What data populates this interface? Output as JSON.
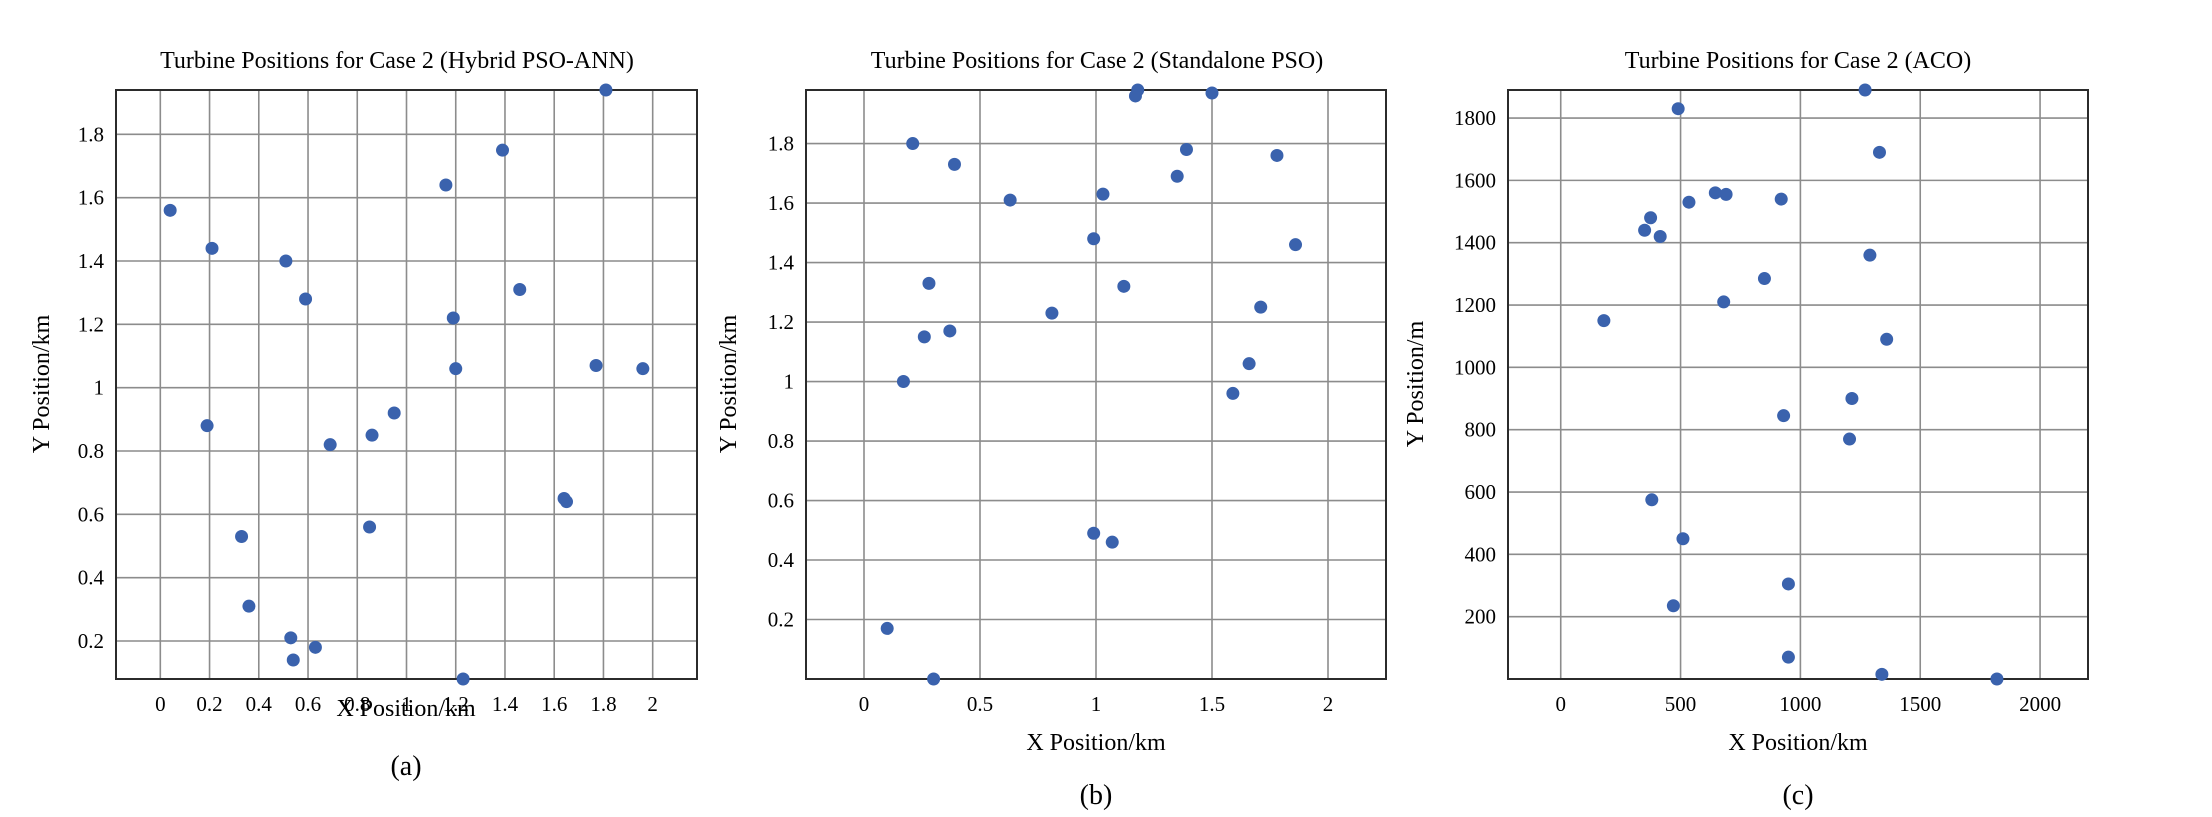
{
  "colors": {
    "marker": "#3a62ad",
    "grid": "#8c8c8c",
    "frame": "#2b2b2b"
  },
  "chart_data": [
    {
      "type": "scatter",
      "title": "Turbine Positions for Case 2 (Hybrid PSO-ANN)",
      "xlabel": "X Position/km",
      "ylabel": "Y Position/km",
      "caption": "(a)",
      "xlim": [
        -0.18,
        2.18
      ],
      "ylim": [
        0.08,
        1.94
      ],
      "xticks": [
        0,
        0.2,
        0.4,
        0.6,
        0.8,
        1,
        1.2,
        1.4,
        1.6,
        1.8,
        2
      ],
      "xtick_labels": [
        "0",
        "0.2",
        "0.4",
        "0.6",
        "0.8",
        "1",
        "1.2",
        "1.4",
        "1.6",
        "1.8",
        "2"
      ],
      "yticks": [
        0.2,
        0.4,
        0.6,
        0.8,
        1,
        1.2,
        1.4,
        1.6,
        1.8
      ],
      "ytick_labels": [
        "0.2",
        "0.4",
        "0.6",
        "0.8",
        "1",
        "1.2",
        "1.4",
        "1.6",
        "1.8"
      ],
      "grid": true,
      "x": [
        0.04,
        0.21,
        0.19,
        0.33,
        0.36,
        0.51,
        0.53,
        0.54,
        0.59,
        0.63,
        0.69,
        0.85,
        0.86,
        0.95,
        1.16,
        1.19,
        1.2,
        1.23,
        1.39,
        1.46,
        1.64,
        1.65,
        1.77,
        1.81,
        1.96
      ],
      "y": [
        1.56,
        1.44,
        0.88,
        0.53,
        0.31,
        1.4,
        0.21,
        0.14,
        1.28,
        0.18,
        0.82,
        0.56,
        0.85,
        0.92,
        1.64,
        1.22,
        1.06,
        0.08,
        1.75,
        1.31,
        0.65,
        0.64,
        1.07,
        1.94,
        1.06
      ]
    },
    {
      "type": "scatter",
      "title": "Turbine Positions for Case 2 (Standalone PSO)",
      "xlabel": "X Position/km",
      "ylabel": "Y Position/km",
      "caption": "(b)",
      "xlim": [
        -0.25,
        2.25
      ],
      "ylim": [
        0.0,
        1.98
      ],
      "xticks": [
        0,
        0.5,
        1,
        1.5,
        2
      ],
      "xtick_labels": [
        "0",
        "0.5",
        "1",
        "1.5",
        "2"
      ],
      "yticks": [
        0.2,
        0.4,
        0.6,
        0.8,
        1,
        1.2,
        1.4,
        1.6,
        1.8
      ],
      "ytick_labels": [
        "0.2",
        "0.4",
        "0.6",
        "0.8",
        "1",
        "1.2",
        "1.4",
        "1.6",
        "1.8"
      ],
      "grid": true,
      "x": [
        0.1,
        0.17,
        0.21,
        0.26,
        0.28,
        0.3,
        0.37,
        0.39,
        0.63,
        0.81,
        0.99,
        0.99,
        1.03,
        1.07,
        1.12,
        1.17,
        1.18,
        1.35,
        1.39,
        1.5,
        1.59,
        1.66,
        1.71,
        1.78,
        1.86
      ],
      "y": [
        0.17,
        1.0,
        1.8,
        1.15,
        1.33,
        0.0,
        1.17,
        1.73,
        1.61,
        1.23,
        1.48,
        0.49,
        1.63,
        0.46,
        1.32,
        1.96,
        1.98,
        1.69,
        1.78,
        1.97,
        0.96,
        1.06,
        1.25,
        1.76,
        1.46
      ]
    },
    {
      "type": "scatter",
      "title": "Turbine Positions for Case 2 (ACO)",
      "xlabel": "X Position/km",
      "ylabel": "Y Position/m",
      "caption": "(c)",
      "xlim": [
        -220,
        2200
      ],
      "ylim": [
        0,
        1890
      ],
      "xticks": [
        0,
        500,
        1000,
        1500,
        2000
      ],
      "xtick_labels": [
        "0",
        "500",
        "1000",
        "1500",
        "2000"
      ],
      "yticks": [
        200,
        400,
        600,
        800,
        1000,
        1200,
        1400,
        1600,
        1800
      ],
      "ytick_labels": [
        "200",
        "400",
        "600",
        "800",
        "1000",
        "1200",
        "1400",
        "1600",
        "1800"
      ],
      "grid": true,
      "x": [
        180,
        350,
        375,
        380,
        415,
        470,
        490,
        510,
        535,
        645,
        680,
        690,
        850,
        920,
        930,
        950,
        950,
        1205,
        1215,
        1270,
        1290,
        1330,
        1340,
        1360,
        1820
      ],
      "y": [
        1150,
        1440,
        1480,
        575,
        1420,
        235,
        1830,
        450,
        1530,
        1560,
        1210,
        1555,
        1285,
        1540,
        845,
        70,
        305,
        770,
        900,
        1890,
        1360,
        1690,
        15,
        1090,
        0
      ]
    }
  ]
}
